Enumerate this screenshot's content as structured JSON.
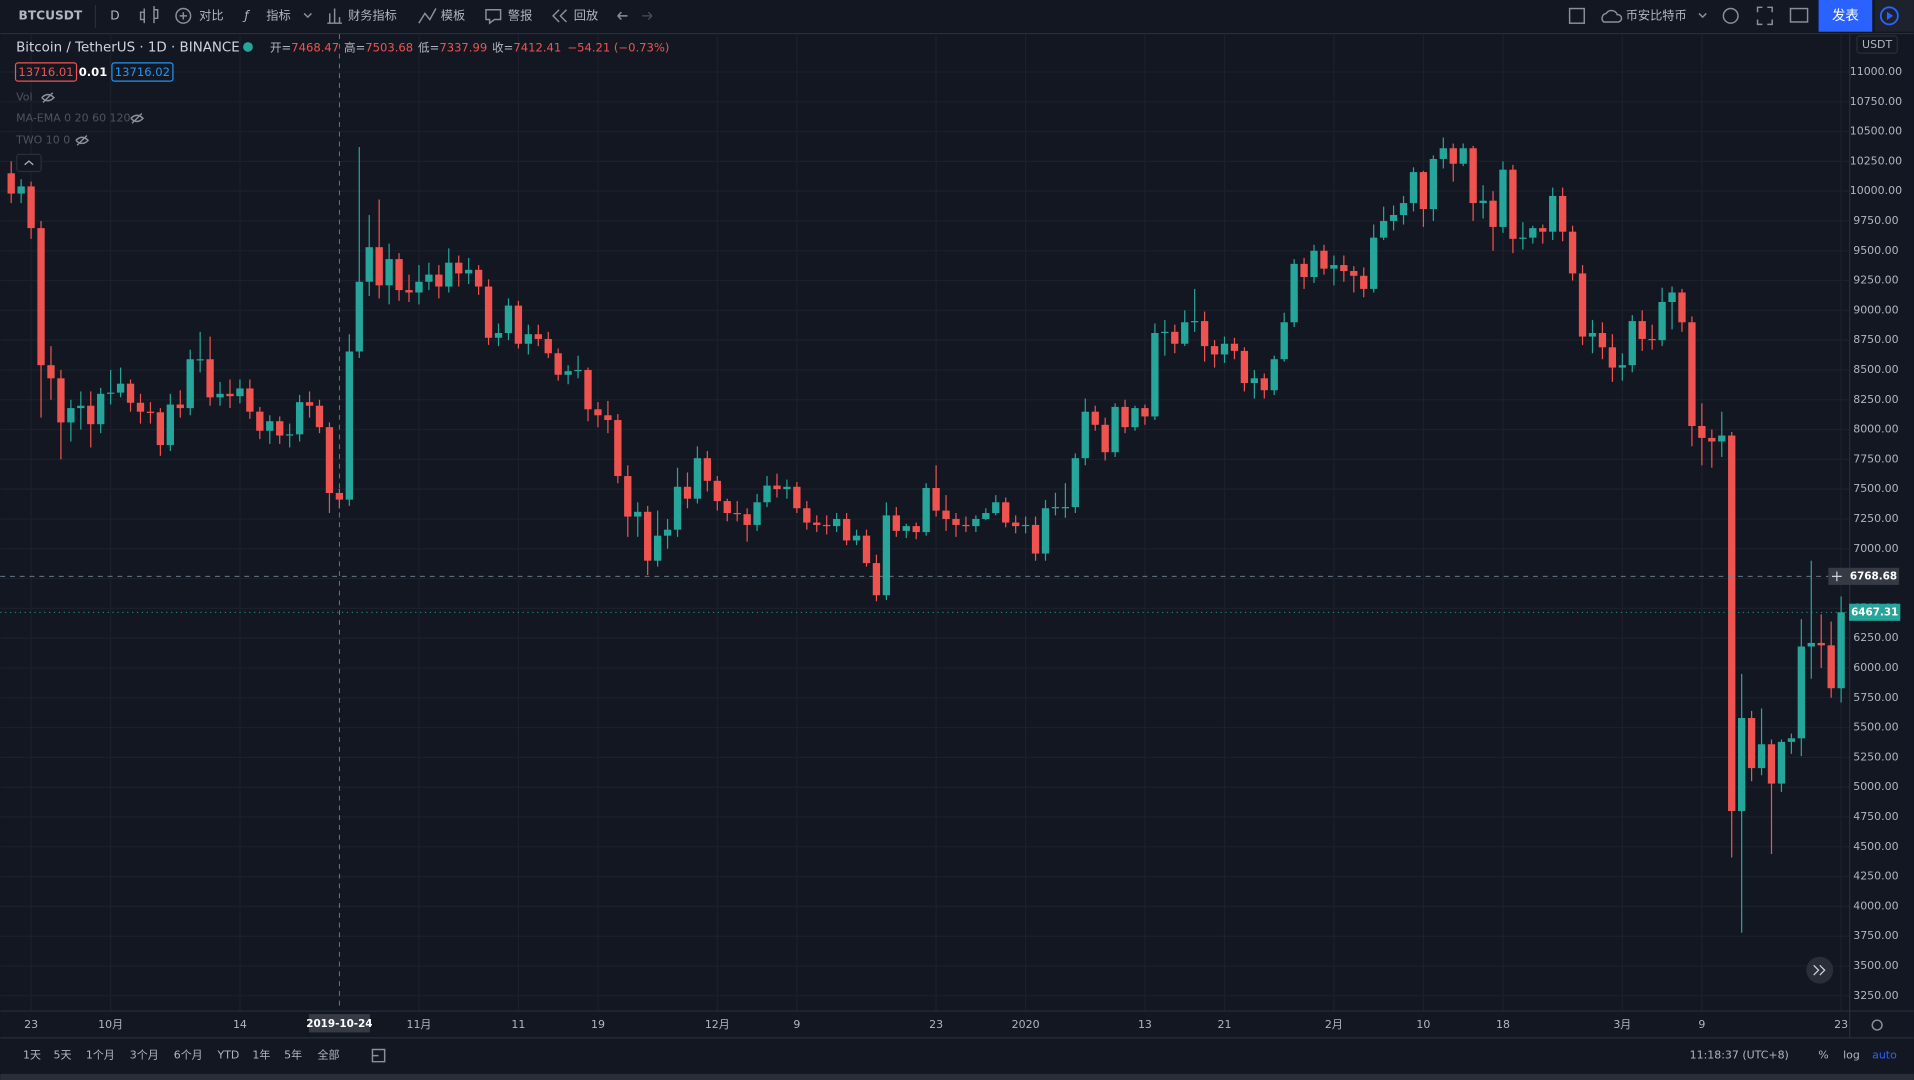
{
  "toolbar": {
    "symbol": "BTCUSDT",
    "interval": "D",
    "compare": "对比",
    "indicators": "指标",
    "financials": "财务指标",
    "templates": "模板",
    "alert": "警报",
    "replay": "回放",
    "exchange": "币安比特币",
    "publish": "发表"
  },
  "legend": {
    "symbol": "Bitcoin / TetherUS · 1D · BINANCE",
    "o": "开=",
    "h": "高=",
    "l": "低=",
    "c": "收=",
    "change": "−54.21 (−0.73%)"
  },
  "quote": {
    "bid": 13716.01,
    "spread": 0.01,
    "ask": 13716.02
  },
  "indicators": [
    "Vol",
    "MA-EMA 0 20 60 120",
    "TWO 10 0"
  ],
  "bottom_bar": {
    "ranges": [
      "1天",
      "5天",
      "1个月",
      "3个月",
      "6个月",
      "YTD",
      "1年",
      "5年",
      "全部"
    ],
    "time": "11:18:37 (UTC+8)",
    "scale_buttons": [
      "%",
      "log",
      "auto"
    ]
  },
  "chart_data": {
    "type": "candlestick",
    "currency": "USDT",
    "up_color": "#26a69a",
    "down_color": "#ef5350",
    "grid": true,
    "open": [
      10150,
      9980,
      10040,
      9690,
      8540,
      8430,
      8060,
      8180,
      8200,
      8045,
      8300,
      8310,
      8385,
      8225,
      8150,
      8145,
      7870,
      8210,
      8180,
      8590,
      8590,
      8270,
      8300,
      8280,
      8345,
      8150,
      7990,
      8070,
      7950,
      7960,
      8230,
      8200,
      8020,
      7468.47,
      7412,
      8655,
      9240,
      9530,
      9210,
      9430,
      9170,
      9150,
      9240,
      9300,
      9200,
      9400,
      9310,
      9340,
      9200,
      8770,
      8810,
      9040,
      8720,
      8800,
      8760,
      8640,
      8460,
      8490,
      8500,
      8170,
      8120,
      8080,
      7610,
      7270,
      7310,
      6900,
      7110,
      7160,
      7520,
      7420,
      7760,
      7570,
      7400,
      7300,
      7290,
      7200,
      7390,
      7530,
      7500,
      7520,
      7340,
      7220,
      7200,
      7190,
      7250,
      7070,
      7110,
      6880,
      6610,
      7280,
      7150,
      7190,
      7140,
      7510,
      7320,
      7250,
      7200,
      7190,
      7250,
      7300,
      7390,
      7220,
      7190,
      7200,
      6960,
      7340,
      7350,
      7350,
      7760,
      8150,
      8040,
      7810,
      8190,
      8020,
      8180,
      8110,
      8810,
      8820,
      8720,
      8900,
      8910,
      8700,
      8630,
      8720,
      8660,
      8390,
      8430,
      8330,
      8590,
      8900,
      9390,
      9280,
      9500,
      9350,
      9380,
      9330,
      9290,
      9180,
      9610,
      9750,
      9800,
      9900,
      10160,
      9850,
      10270,
      10360,
      10230,
      10360,
      9900,
      9920,
      9700,
      10180,
      9600,
      9610,
      9690,
      9660,
      9960,
      9660,
      9310,
      8780,
      8810,
      8690,
      8520,
      8540,
      8910,
      8760,
      8750,
      9070,
      9150,
      8900,
      8030,
      7930,
      7900,
      7950,
      4800,
      5580,
      5160,
      5360,
      5030,
      5380,
      5410,
      6180,
      6210,
      6190,
      5830
    ],
    "high": [
      10250,
      10100,
      10080,
      9750,
      8700,
      8500,
      8250,
      8320,
      8320,
      8350,
      8500,
      8520,
      8420,
      8300,
      8230,
      8180,
      8300,
      8330,
      8670,
      8820,
      8780,
      8400,
      8420,
      8420,
      8420,
      8190,
      8120,
      8110,
      8050,
      8290,
      8320,
      8250,
      8060,
      7503.68,
      8800,
      10370,
      9800,
      9930,
      9560,
      9480,
      9300,
      9380,
      9400,
      9380,
      9520,
      9460,
      9440,
      9380,
      9260,
      8890,
      9100,
      9080,
      8880,
      8880,
      8820,
      8680,
      8540,
      8620,
      8520,
      8230,
      8240,
      8130,
      7700,
      7390,
      7360,
      7320,
      7250,
      7680,
      7640,
      7860,
      7820,
      7610,
      7420,
      7400,
      7340,
      7460,
      7610,
      7630,
      7580,
      7560,
      7400,
      7280,
      7280,
      7300,
      7300,
      7160,
      7160,
      6950,
      7390,
      7350,
      7210,
      7220,
      7550,
      7700,
      7450,
      7300,
      7270,
      7280,
      7340,
      7450,
      7430,
      7280,
      7270,
      7270,
      7410,
      7470,
      7550,
      7800,
      8260,
      8200,
      8100,
      8220,
      8250,
      8200,
      8210,
      8890,
      8920,
      8880,
      9000,
      9180,
      8990,
      8750,
      8780,
      8770,
      8690,
      8500,
      8470,
      8620,
      8980,
      9430,
      9440,
      9550,
      9550,
      9460,
      9460,
      9370,
      9360,
      9720,
      9870,
      9880,
      9960,
      10200,
      10170,
      10300,
      10450,
      10400,
      10400,
      10380,
      10050,
      10000,
      10250,
      10220,
      9740,
      9710,
      9720,
      10030,
      10030,
      9710,
      9380,
      8920,
      8900,
      8800,
      8640,
      8960,
      9000,
      8880,
      9190,
      9200,
      9180,
      8950,
      8220,
      8000,
      8150,
      7980,
      5950,
      5640,
      5660,
      5400,
      5400,
      5450,
      6410,
      6900,
      6450,
      6390,
      6600
    ],
    "low": [
      9900,
      9900,
      9600,
      8100,
      8250,
      7750,
      7900,
      8000,
      7850,
      7970,
      8210,
      8270,
      8150,
      8050,
      8050,
      7780,
      7820,
      8100,
      8120,
      8480,
      8200,
      8200,
      8180,
      8220,
      8090,
      7920,
      7880,
      7880,
      7850,
      7900,
      8100,
      7970,
      7300,
      7337.99,
      7360,
      8600,
      9120,
      9100,
      9050,
      9080,
      9070,
      9050,
      9170,
      9100,
      9150,
      9200,
      9220,
      9130,
      8710,
      8700,
      8750,
      8680,
      8630,
      8700,
      8600,
      8410,
      8380,
      8430,
      8070,
      8020,
      7970,
      7550,
      7100,
      7100,
      6780,
      6850,
      7000,
      7100,
      7340,
      7380,
      7480,
      7320,
      7230,
      7230,
      7060,
      7150,
      7350,
      7430,
      7420,
      7300,
      7160,
      7140,
      7120,
      7140,
      7030,
      7030,
      6850,
      6560,
      6570,
      7100,
      7090,
      7080,
      7110,
      7270,
      7150,
      7100,
      7140,
      7140,
      7240,
      7280,
      7180,
      7130,
      7130,
      6900,
      6900,
      7280,
      7260,
      7300,
      7700,
      7990,
      7740,
      7770,
      7970,
      7990,
      8040,
      8080,
      8620,
      8640,
      8700,
      8820,
      8570,
      8520,
      8560,
      8590,
      8320,
      8260,
      8260,
      8290,
      8570,
      8860,
      9180,
      9230,
      9300,
      9210,
      9240,
      9150,
      9110,
      9150,
      9590,
      9670,
      9720,
      9830,
      9700,
      9750,
      10190,
      10080,
      10210,
      9750,
      9770,
      9500,
      9650,
      9480,
      9510,
      9560,
      9560,
      9590,
      9580,
      9250,
      8710,
      8640,
      8590,
      8400,
      8410,
      8480,
      8660,
      8670,
      8700,
      8840,
      8820,
      7860,
      7700,
      7680,
      7770,
      4410,
      3780,
      5050,
      5100,
      4440,
      4960,
      5280,
      5260,
      5910,
      6000,
      5750,
      5710
    ],
    "close": [
      9980,
      10040,
      9690,
      8540,
      8430,
      8060,
      8180,
      8200,
      8045,
      8300,
      8310,
      8385,
      8225,
      8150,
      8145,
      7870,
      8210,
      8180,
      8590,
      8590,
      8270,
      8300,
      8280,
      8345,
      8150,
      7990,
      8070,
      7950,
      7960,
      8230,
      8200,
      8020,
      7468,
      7412.41,
      8655,
      9240,
      9530,
      9210,
      9430,
      9170,
      9150,
      9240,
      9300,
      9200,
      9400,
      9310,
      9340,
      9200,
      8770,
      8810,
      9040,
      8720,
      8800,
      8760,
      8640,
      8460,
      8490,
      8500,
      8170,
      8120,
      8080,
      7610,
      7270,
      7310,
      6900,
      7110,
      7160,
      7520,
      7420,
      7760,
      7570,
      7400,
      7300,
      7290,
      7200,
      7390,
      7530,
      7500,
      7520,
      7340,
      7220,
      7200,
      7190,
      7250,
      7070,
      7110,
      6880,
      6610,
      7280,
      7150,
      7190,
      7140,
      7510,
      7320,
      7250,
      7200,
      7190,
      7250,
      7300,
      7390,
      7220,
      7190,
      7200,
      6960,
      7340,
      7350,
      7350,
      7760,
      8150,
      8040,
      7810,
      8190,
      8020,
      8180,
      8110,
      8810,
      8820,
      8720,
      8900,
      8910,
      8700,
      8630,
      8720,
      8660,
      8390,
      8430,
      8330,
      8590,
      8900,
      9390,
      9280,
      9500,
      9350,
      9380,
      9330,
      9290,
      9180,
      9610,
      9750,
      9800,
      9900,
      10160,
      9850,
      10270,
      10360,
      10230,
      10360,
      9900,
      9920,
      9700,
      10180,
      9600,
      9610,
      9690,
      9660,
      9960,
      9660,
      9310,
      8780,
      8810,
      8690,
      8520,
      8540,
      8910,
      8760,
      8750,
      9070,
      9150,
      8900,
      8030,
      7930,
      7900,
      7950,
      4800,
      5580,
      5160,
      5360,
      5030,
      5380,
      5410,
      6180,
      6210,
      6190,
      5830,
      6467.31
    ],
    "xlim": [
      -1.1,
      184.8
    ],
    "xticks": [
      {
        "value": 2,
        "label": "23"
      },
      {
        "value": 10,
        "label": "10月"
      },
      {
        "value": 23,
        "label": "14"
      },
      {
        "value": 41,
        "label": "11月"
      },
      {
        "value": 51,
        "label": "11"
      },
      {
        "value": 59,
        "label": "19"
      },
      {
        "value": 71,
        "label": "12月"
      },
      {
        "value": 79,
        "label": "9"
      },
      {
        "value": 93,
        "label": "23"
      },
      {
        "value": 102,
        "label": "2020"
      },
      {
        "value": 114,
        "label": "13"
      },
      {
        "value": 122,
        "label": "21"
      },
      {
        "value": 133,
        "label": "2月"
      },
      {
        "value": 142,
        "label": "10"
      },
      {
        "value": 150,
        "label": "18"
      },
      {
        "value": 162,
        "label": "3月"
      },
      {
        "value": 170,
        "label": "9"
      },
      {
        "value": 184,
        "label": "23"
      }
    ],
    "ylim": [
      3127,
      11317
    ],
    "yticks": [
      {
        "value": 3250,
        "label": "3250.00"
      },
      {
        "value": 3500,
        "label": "3500.00"
      },
      {
        "value": 3750,
        "label": "3750.00"
      },
      {
        "value": 4000,
        "label": "4000.00"
      },
      {
        "value": 4250,
        "label": "4250.00"
      },
      {
        "value": 4500,
        "label": "4500.00"
      },
      {
        "value": 4750,
        "label": "4750.00"
      },
      {
        "value": 5000,
        "label": "5000.00"
      },
      {
        "value": 5250,
        "label": "5250.00"
      },
      {
        "value": 5500,
        "label": "5500.00"
      },
      {
        "value": 5750,
        "label": "5750.00"
      },
      {
        "value": 6000,
        "label": "6000.00"
      },
      {
        "value": 6250,
        "label": "6250.00"
      },
      {
        "value": 6500,
        "label": "6500.00"
      },
      {
        "value": 6750,
        "label": "6750.00"
      },
      {
        "value": 7000,
        "label": "7000.00"
      },
      {
        "value": 7250,
        "label": "7250.00"
      },
      {
        "value": 7500,
        "label": "7500.00"
      },
      {
        "value": 7750,
        "label": "7750.00"
      },
      {
        "value": 8000,
        "label": "8000.00"
      },
      {
        "value": 8250,
        "label": "8250.00"
      },
      {
        "value": 8500,
        "label": "8500.00"
      },
      {
        "value": 8750,
        "label": "8750.00"
      },
      {
        "value": 9000,
        "label": "9000.00"
      },
      {
        "value": 9250,
        "label": "9250.00"
      },
      {
        "value": 9500,
        "label": "9500.00"
      },
      {
        "value": 9750,
        "label": "9750.00"
      },
      {
        "value": 10000,
        "label": "10000.00"
      },
      {
        "value": 10250,
        "label": "10250.00"
      },
      {
        "value": 10500,
        "label": "10500.00"
      },
      {
        "value": 10750,
        "label": "10750.00"
      },
      {
        "value": 11000,
        "label": "11000.00"
      }
    ],
    "crosshair": {
      "x": {
        "value": 33,
        "label": "2019-10-24"
      },
      "y": {
        "value": 6768.68,
        "label": "6768.68"
      }
    }
  }
}
